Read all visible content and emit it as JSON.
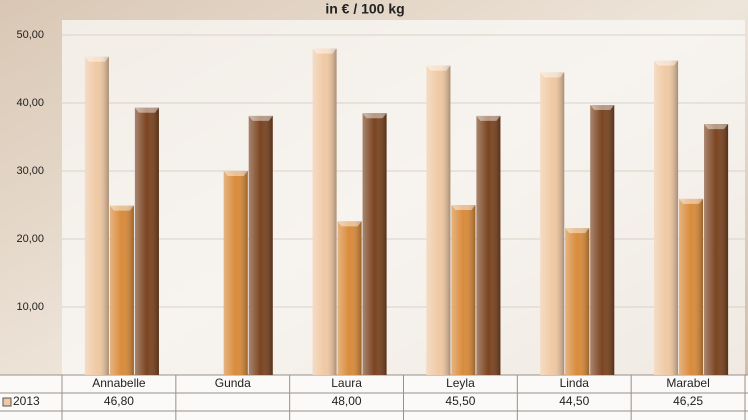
{
  "chart_data": {
    "type": "bar",
    "title": "in € / 100 kg",
    "categories": [
      "Annabelle",
      "Gunda",
      "Laura",
      "Leyla",
      "Linda",
      "Marabel"
    ],
    "series": [
      {
        "name": "2013",
        "color": "#f0c9a4",
        "values": [
          46.8,
          null,
          48.0,
          45.5,
          44.5,
          46.25
        ],
        "value_labels": [
          "46,80",
          null,
          "48,00",
          "45,50",
          "44,50",
          "46,25"
        ]
      },
      {
        "color": "#d98b3a",
        "values": [
          24.9,
          30.0,
          22.6,
          25.0,
          21.6,
          25.9
        ]
      },
      {
        "color": "#7a4420",
        "values": [
          39.3,
          38.1,
          38.5,
          38.1,
          39.7,
          36.9
        ]
      }
    ],
    "ylim": [
      0,
      50
    ],
    "yticks": [
      {
        "value": 0,
        "label": "-"
      },
      {
        "value": 10,
        "label": "10,00"
      },
      {
        "value": 20,
        "label": "20,00"
      },
      {
        "value": 30,
        "label": "30,00"
      },
      {
        "value": 40,
        "label": "40,00"
      },
      {
        "value": 50,
        "label": "50,00"
      }
    ],
    "grid": true
  }
}
